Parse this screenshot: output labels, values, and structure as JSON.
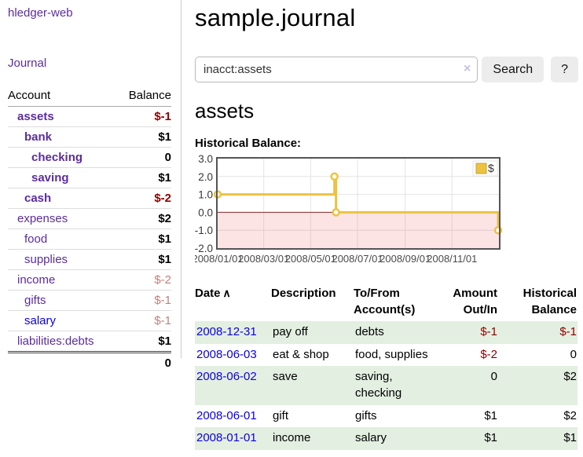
{
  "colors": {
    "link_purple": "#5b2d9c",
    "link_blue": "#0b00e0",
    "neg_strong": "#8b0000",
    "neg_soft": "#c1807d",
    "row_green": "#e3efe1",
    "accent_gold": "#edc240",
    "chart_border": "#545454",
    "grid_line": "#e4e4e4",
    "negative_region": "rgba(236,96,96,0.17)",
    "zero_line": "#8b2a2a"
  },
  "sidebar": {
    "brand": "hledger-web",
    "journal_link": "Journal",
    "header": {
      "account": "Account",
      "balance": "Balance"
    },
    "accounts": [
      {
        "name": "assets",
        "balance": "$-1",
        "indent": 1,
        "bold": true,
        "neg": "strong",
        "link": "purple"
      },
      {
        "name": "bank",
        "balance": "$1",
        "indent": 2,
        "bold": true,
        "neg": "none",
        "link": "purple"
      },
      {
        "name": "checking",
        "balance": "0",
        "indent": 3,
        "bold": true,
        "neg": "none",
        "link": "purple"
      },
      {
        "name": "saving",
        "balance": "$1",
        "indent": 3,
        "bold": true,
        "neg": "none",
        "link": "purple"
      },
      {
        "name": "cash",
        "balance": "$-2",
        "indent": 2,
        "bold": true,
        "neg": "strong",
        "link": "purple"
      },
      {
        "name": "expenses",
        "balance": "$2",
        "indent": 1,
        "bold": false,
        "neg": "none",
        "link": "purple"
      },
      {
        "name": "food",
        "balance": "$1",
        "indent": 2,
        "bold": false,
        "neg": "none",
        "link": "purple"
      },
      {
        "name": "supplies",
        "balance": "$1",
        "indent": 2,
        "bold": false,
        "neg": "none",
        "link": "purple"
      },
      {
        "name": "income",
        "balance": "$-2",
        "indent": 1,
        "bold": false,
        "neg": "soft",
        "link": "purple"
      },
      {
        "name": "gifts",
        "balance": "$-1",
        "indent": 2,
        "bold": false,
        "neg": "soft",
        "link": "purple"
      },
      {
        "name": "salary",
        "balance": "$-1",
        "indent": 2,
        "bold": false,
        "neg": "soft",
        "link": "blue"
      },
      {
        "name": "liabilities:debts",
        "balance": "$1",
        "indent": 1,
        "bold": false,
        "neg": "none",
        "link": "purple"
      }
    ],
    "total": "0"
  },
  "main": {
    "title": "sample.journal",
    "search": {
      "value": "inacct:assets",
      "clear": "×",
      "button": "Search",
      "help": "?"
    },
    "heading": "assets",
    "chart_title": "Historical Balance:"
  },
  "chart_data": {
    "type": "line",
    "step": true,
    "title": "Historical Balance",
    "series": [
      {
        "name": "$",
        "color": "#edc240",
        "points": [
          [
            "2008-01-01",
            1
          ],
          [
            "2008-06-01",
            2
          ],
          [
            "2008-06-03",
            0
          ],
          [
            "2008-12-31",
            -1
          ]
        ]
      }
    ],
    "x_range": [
      "2008-01-01",
      "2009-01-01"
    ],
    "ylim": [
      -2,
      3
    ],
    "yticks": [
      3.0,
      2.0,
      1.0,
      0.0,
      -1.0,
      -2.0
    ],
    "ytick_labels": [
      "3.0",
      "2.0",
      "1.0",
      "0.0",
      "-1.0",
      "-2.0"
    ],
    "xticks": [
      {
        "date": "2008-01-01",
        "label": "2008/01/01"
      },
      {
        "date": "2008-03-01",
        "label": "2008/03/01"
      },
      {
        "date": "2008-05-01",
        "label": "2008/05/01"
      },
      {
        "date": "2008-07-01",
        "label": "2008/07/01"
      },
      {
        "date": "2008-09-01",
        "label": "2008/09/01"
      },
      {
        "date": "2008-11-01",
        "label": "2008/11/01"
      }
    ],
    "legend": {
      "label": "$",
      "position": "top-right"
    },
    "grid": true,
    "shade_negative_region": true
  },
  "register": {
    "columns": [
      {
        "line1": "Date",
        "line2": "",
        "sort_icon": "∧",
        "align": "left"
      },
      {
        "line1": "Description",
        "line2": "",
        "align": "left"
      },
      {
        "line1": "To/From",
        "line2": "Account(s)",
        "align": "left"
      },
      {
        "line1": "Amount",
        "line2": "Out/In",
        "align": "right"
      },
      {
        "line1": "Historical",
        "line2": "Balance",
        "align": "right"
      }
    ],
    "rows": [
      {
        "date": "2008-12-31",
        "description": "pay off",
        "accounts": "debts",
        "amount": "$-1",
        "amount_neg": true,
        "balance": "$-1",
        "balance_neg": true
      },
      {
        "date": "2008-06-03",
        "description": "eat & shop",
        "accounts": "food, supplies",
        "amount": "$-2",
        "amount_neg": true,
        "balance": "0",
        "balance_neg": false
      },
      {
        "date": "2008-06-02",
        "description": "save",
        "accounts": "saving, checking",
        "amount": "0",
        "amount_neg": false,
        "balance": "$2",
        "balance_neg": false
      },
      {
        "date": "2008-06-01",
        "description": "gift",
        "accounts": "gifts",
        "amount": "$1",
        "amount_neg": false,
        "balance": "$2",
        "balance_neg": false
      },
      {
        "date": "2008-01-01",
        "description": "income",
        "accounts": "salary",
        "amount": "$1",
        "amount_neg": false,
        "balance": "$1",
        "balance_neg": false
      }
    ]
  }
}
